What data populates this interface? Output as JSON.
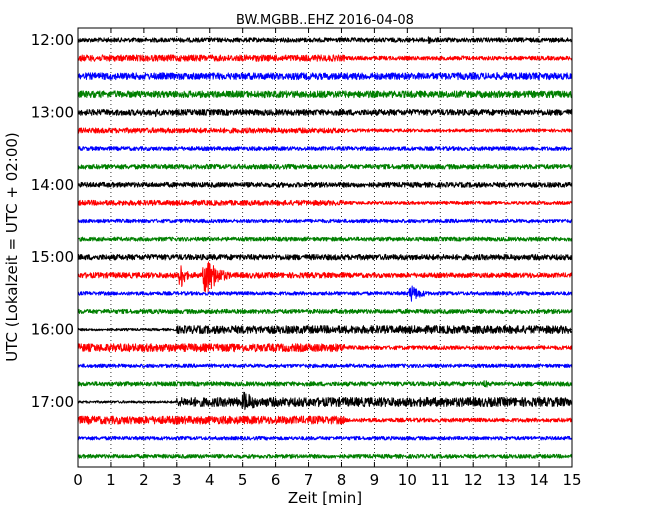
{
  "chart_data": {
    "type": "line",
    "title": "BW.MGBB..EHZ 2016-04-08",
    "xlabel": "Zeit  [min]",
    "ylabel": "UTC (Lokalzeit = UTC + 02:00)",
    "xlim": [
      0,
      15
    ],
    "x_ticks": [
      "0",
      "1",
      "2",
      "3",
      "4",
      "5",
      "6",
      "7",
      "8",
      "9",
      "10",
      "11",
      "12",
      "13",
      "14",
      "15"
    ],
    "y_ticks": [
      "12:00",
      "13:00",
      "14:00",
      "15:00",
      "16:00",
      "17:00"
    ],
    "grid": "vertical-dotted",
    "colors": [
      "#000000",
      "#ff0000",
      "#0000ff",
      "#008000"
    ],
    "traces": [
      {
        "start": "12:00",
        "color": "#000000",
        "amplitude": 2.2,
        "events": [
          {
            "t": 10.5,
            "amp": 4,
            "dur": 1.2
          }
        ]
      },
      {
        "start": "12:15",
        "color": "#ff0000",
        "amplitude": 3.2,
        "change_at": 8.1,
        "after": 2.0,
        "events": [
          {
            "t": 11.6,
            "amp": 3,
            "dur": 0.6
          }
        ]
      },
      {
        "start": "12:30",
        "color": "#0000ff",
        "amplitude": 3.4,
        "events": [
          {
            "t": 1.2,
            "amp": 4,
            "dur": 0.6
          },
          {
            "t": 2.2,
            "amp": 3,
            "dur": 0.5
          },
          {
            "t": 12.6,
            "amp": 4,
            "dur": 0.8
          },
          {
            "t": 14.5,
            "amp": 3,
            "dur": 0.5
          }
        ]
      },
      {
        "start": "12:45",
        "color": "#008000",
        "amplitude": 3.4,
        "events": [
          {
            "t": 4.5,
            "amp": 3,
            "dur": 1.5
          }
        ]
      },
      {
        "start": "13:00",
        "color": "#000000",
        "amplitude": 3.0,
        "events": [
          {
            "t": 2.3,
            "amp": 5,
            "dur": 0.4
          }
        ]
      },
      {
        "start": "13:15",
        "color": "#ff0000",
        "amplitude": 2.6,
        "change_at": 8.1,
        "after": 1.6,
        "events": []
      },
      {
        "start": "13:30",
        "color": "#0000ff",
        "amplitude": 2.0,
        "events": []
      },
      {
        "start": "13:45",
        "color": "#008000",
        "amplitude": 2.4,
        "events": []
      },
      {
        "start": "14:00",
        "color": "#000000",
        "amplitude": 2.5,
        "events": []
      },
      {
        "start": "14:15",
        "color": "#ff0000",
        "amplitude": 2.6,
        "change_at": 8.1,
        "after": 1.6,
        "events": []
      },
      {
        "start": "14:30",
        "color": "#0000ff",
        "amplitude": 1.8,
        "events": []
      },
      {
        "start": "14:45",
        "color": "#008000",
        "amplitude": 2.0,
        "events": []
      },
      {
        "start": "15:00",
        "color": "#000000",
        "amplitude": 2.8,
        "events": [
          {
            "t": 2.5,
            "amp": 4,
            "dur": 0.2
          }
        ]
      },
      {
        "start": "15:15",
        "color": "#ff0000",
        "amplitude": 2.8,
        "change_at": 8.1,
        "after": 2.4,
        "events": [
          {
            "t": 3.05,
            "amp": 18,
            "dur": 0.4
          },
          {
            "t": 3.75,
            "amp": 22,
            "dur": 1.0
          },
          {
            "t": 13.6,
            "amp": 4,
            "dur": 0.6
          }
        ]
      },
      {
        "start": "15:30",
        "color": "#0000ff",
        "amplitude": 1.8,
        "events": [
          {
            "t": 10.0,
            "amp": 9,
            "dur": 0.9
          },
          {
            "t": 14.4,
            "amp": 6,
            "dur": 0.08
          }
        ]
      },
      {
        "start": "15:45",
        "color": "#008000",
        "amplitude": 2.2,
        "events": []
      },
      {
        "start": "16:00",
        "color": "#000000",
        "amplitude": 1.2,
        "change_at": 3.0,
        "after": 4.0,
        "events": [
          {
            "t": 10.3,
            "amp": 5,
            "dur": 0.4
          }
        ]
      },
      {
        "start": "16:15",
        "color": "#ff0000",
        "amplitude": 4.0,
        "change_at": 8.1,
        "after": 2.0,
        "events": []
      },
      {
        "start": "16:30",
        "color": "#0000ff",
        "amplitude": 1.8,
        "events": []
      },
      {
        "start": "16:45",
        "color": "#008000",
        "amplitude": 2.2,
        "events": [
          {
            "t": 12.3,
            "amp": 5,
            "dur": 0.4
          }
        ]
      },
      {
        "start": "17:00",
        "color": "#000000",
        "amplitude": 1.2,
        "change_at": 3.0,
        "after": 4.6,
        "events": [
          {
            "t": 4.9,
            "amp": 11,
            "dur": 1.2
          }
        ]
      },
      {
        "start": "17:15",
        "color": "#ff0000",
        "amplitude": 4.0,
        "change_at": 8.1,
        "after": 2.0,
        "events": []
      },
      {
        "start": "17:30",
        "color": "#0000ff",
        "amplitude": 1.8,
        "events": []
      },
      {
        "start": "17:45",
        "color": "#008000",
        "amplitude": 2.0,
        "events": []
      }
    ]
  }
}
